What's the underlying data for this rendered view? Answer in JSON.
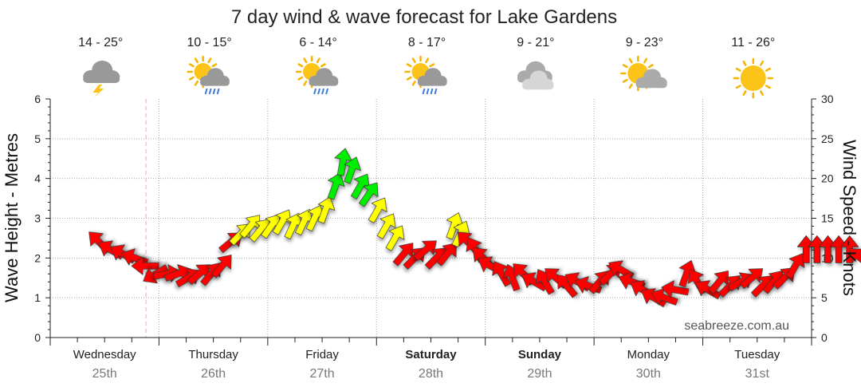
{
  "chart_data": {
    "type": "line",
    "title": "7 day wind & wave forecast for Lake Gardens",
    "ylabel_left": "Wave Height - Metres",
    "ylabel_right": "Wind Speed - Knots",
    "ylim_left": [
      0,
      6
    ],
    "ylim_right": [
      0,
      30
    ],
    "yticks_left": [
      "0",
      "1",
      "2",
      "3",
      "4",
      "5",
      "6"
    ],
    "yticks_right": [
      "0",
      "5",
      "10",
      "15",
      "20",
      "25",
      "30"
    ],
    "watermark": "seabreeze.com.au",
    "days": [
      {
        "name": "Wednesday",
        "date": "25th",
        "bold": false,
        "temp": "14 - 25°",
        "icon": "storm-cloud-icon"
      },
      {
        "name": "Thursday",
        "date": "26th",
        "bold": false,
        "temp": "10 - 15°",
        "icon": "sun-cloud-rain-icon"
      },
      {
        "name": "Friday",
        "date": "27th",
        "bold": false,
        "temp": "6 - 14°",
        "icon": "sun-cloud-rain-icon"
      },
      {
        "name": "Saturday",
        "date": "28th",
        "bold": true,
        "temp": "8 - 17°",
        "icon": "sun-cloud-rain-icon"
      },
      {
        "name": "Sunday",
        "date": "29th",
        "bold": true,
        "temp": "9 - 21°",
        "icon": "cloud-icon"
      },
      {
        "name": "Monday",
        "date": "30th",
        "bold": false,
        "temp": "9 - 23°",
        "icon": "sun-cloud-icon"
      },
      {
        "name": "Tuesday",
        "date": "31st",
        "bold": false,
        "temp": "11 - 26°",
        "icon": "sun-icon"
      }
    ],
    "now_marker_day": 0.88,
    "series": [
      {
        "name": "Wind Speed",
        "axis": "right",
        "colors": {
          "low": "#ff0000",
          "mid": "#ffff00",
          "high": "#00ee00"
        },
        "points": [
          {
            "x": 0.45,
            "speed": 12,
            "dir": 315
          },
          {
            "x": 0.56,
            "speed": 11,
            "dir": 300
          },
          {
            "x": 0.67,
            "speed": 10.5,
            "dir": 300
          },
          {
            "x": 0.78,
            "speed": 10,
            "dir": 290
          },
          {
            "x": 0.88,
            "speed": 9,
            "dir": 270
          },
          {
            "x": 0.97,
            "speed": 8,
            "dir": 240
          },
          {
            "x": 1.07,
            "speed": 8,
            "dir": 80
          },
          {
            "x": 1.17,
            "speed": 8,
            "dir": 70
          },
          {
            "x": 1.27,
            "speed": 7.5,
            "dir": 60
          },
          {
            "x": 1.37,
            "speed": 8,
            "dir": 50
          },
          {
            "x": 1.48,
            "speed": 8,
            "dir": 40
          },
          {
            "x": 1.58,
            "speed": 9,
            "dir": 40
          },
          {
            "x": 1.66,
            "speed": 12,
            "dir": 50
          },
          {
            "x": 1.75,
            "speed": 13,
            "dir": 45
          },
          {
            "x": 1.84,
            "speed": 14,
            "dir": 40
          },
          {
            "x": 1.93,
            "speed": 13.5,
            "dir": 40
          },
          {
            "x": 2.03,
            "speed": 14,
            "dir": 35
          },
          {
            "x": 2.13,
            "speed": 14.5,
            "dir": 30
          },
          {
            "x": 2.23,
            "speed": 14,
            "dir": 25
          },
          {
            "x": 2.33,
            "speed": 14.5,
            "dir": 25
          },
          {
            "x": 2.43,
            "speed": 15,
            "dir": 25
          },
          {
            "x": 2.53,
            "speed": 16,
            "dir": 20
          },
          {
            "x": 2.62,
            "speed": 19,
            "dir": 20
          },
          {
            "x": 2.69,
            "speed": 22,
            "dir": 10
          },
          {
            "x": 2.77,
            "speed": 21,
            "dir": 20
          },
          {
            "x": 2.85,
            "speed": 19,
            "dir": 30
          },
          {
            "x": 2.93,
            "speed": 18,
            "dir": 35
          },
          {
            "x": 3.01,
            "speed": 16,
            "dir": 30
          },
          {
            "x": 3.09,
            "speed": 14,
            "dir": 30
          },
          {
            "x": 3.17,
            "speed": 12.5,
            "dir": 30
          },
          {
            "x": 3.25,
            "speed": 10.5,
            "dir": 40
          },
          {
            "x": 3.35,
            "speed": 10,
            "dir": 45
          },
          {
            "x": 3.45,
            "speed": 11,
            "dir": 50
          },
          {
            "x": 3.55,
            "speed": 10,
            "dir": 45
          },
          {
            "x": 3.65,
            "speed": 10.5,
            "dir": 40
          },
          {
            "x": 3.71,
            "speed": 14,
            "dir": 20
          },
          {
            "x": 3.77,
            "speed": 13,
            "dir": 25
          },
          {
            "x": 3.84,
            "speed": 12,
            "dir": 315
          },
          {
            "x": 3.91,
            "speed": 11,
            "dir": 330
          },
          {
            "x": 3.98,
            "speed": 10,
            "dir": 315
          },
          {
            "x": 4.05,
            "speed": 9,
            "dir": 300
          },
          {
            "x": 4.15,
            "speed": 8,
            "dir": 330
          },
          {
            "x": 4.25,
            "speed": 7.5,
            "dir": 340
          },
          {
            "x": 4.35,
            "speed": 8,
            "dir": 315
          },
          {
            "x": 4.45,
            "speed": 7,
            "dir": 300
          },
          {
            "x": 4.55,
            "speed": 7,
            "dir": 330
          },
          {
            "x": 4.65,
            "speed": 7.5,
            "dir": 310
          },
          {
            "x": 4.75,
            "speed": 6.5,
            "dir": 320
          },
          {
            "x": 4.85,
            "speed": 7,
            "dir": 300
          },
          {
            "x": 4.95,
            "speed": 6.5,
            "dir": 290
          },
          {
            "x": 5.05,
            "speed": 7,
            "dir": 40
          },
          {
            "x": 5.15,
            "speed": 8,
            "dir": 45
          },
          {
            "x": 5.25,
            "speed": 8.5,
            "dir": 300
          },
          {
            "x": 5.35,
            "speed": 7,
            "dir": 290
          },
          {
            "x": 5.45,
            "speed": 6,
            "dir": 300
          },
          {
            "x": 5.55,
            "speed": 5,
            "dir": 300
          },
          {
            "x": 5.65,
            "speed": 5,
            "dir": 290
          },
          {
            "x": 5.75,
            "speed": 6,
            "dir": 280
          },
          {
            "x": 5.85,
            "speed": 8,
            "dir": 20
          },
          {
            "x": 5.95,
            "speed": 7,
            "dir": 330
          },
          {
            "x": 6.05,
            "speed": 6,
            "dir": 300
          },
          {
            "x": 6.15,
            "speed": 7,
            "dir": 40
          },
          {
            "x": 6.25,
            "speed": 6.5,
            "dir": 45
          },
          {
            "x": 6.35,
            "speed": 7,
            "dir": 60
          },
          {
            "x": 6.45,
            "speed": 7.5,
            "dir": 50
          },
          {
            "x": 6.55,
            "speed": 6.5,
            "dir": 45
          },
          {
            "x": 6.65,
            "speed": 7,
            "dir": 40
          },
          {
            "x": 6.75,
            "speed": 7.5,
            "dir": 45
          },
          {
            "x": 6.85,
            "speed": 9,
            "dir": 30
          },
          {
            "x": 6.95,
            "speed": 11,
            "dir": 0
          },
          {
            "x": 7.05,
            "speed": 11,
            "dir": 0
          },
          {
            "x": 7.15,
            "speed": 11,
            "dir": 0
          },
          {
            "x": 7.25,
            "speed": 11,
            "dir": 0
          },
          {
            "x": 7.35,
            "speed": 11,
            "dir": 0
          },
          {
            "x": 7.45,
            "speed": 10,
            "dir": 310
          },
          {
            "x": 7.55,
            "speed": 9,
            "dir": 320
          },
          {
            "x": 7.65,
            "speed": 8.5,
            "dir": 330
          },
          {
            "x": 7.75,
            "speed": 9.5,
            "dir": 40
          },
          {
            "x": 7.85,
            "speed": 10,
            "dir": 45
          }
        ]
      }
    ]
  }
}
